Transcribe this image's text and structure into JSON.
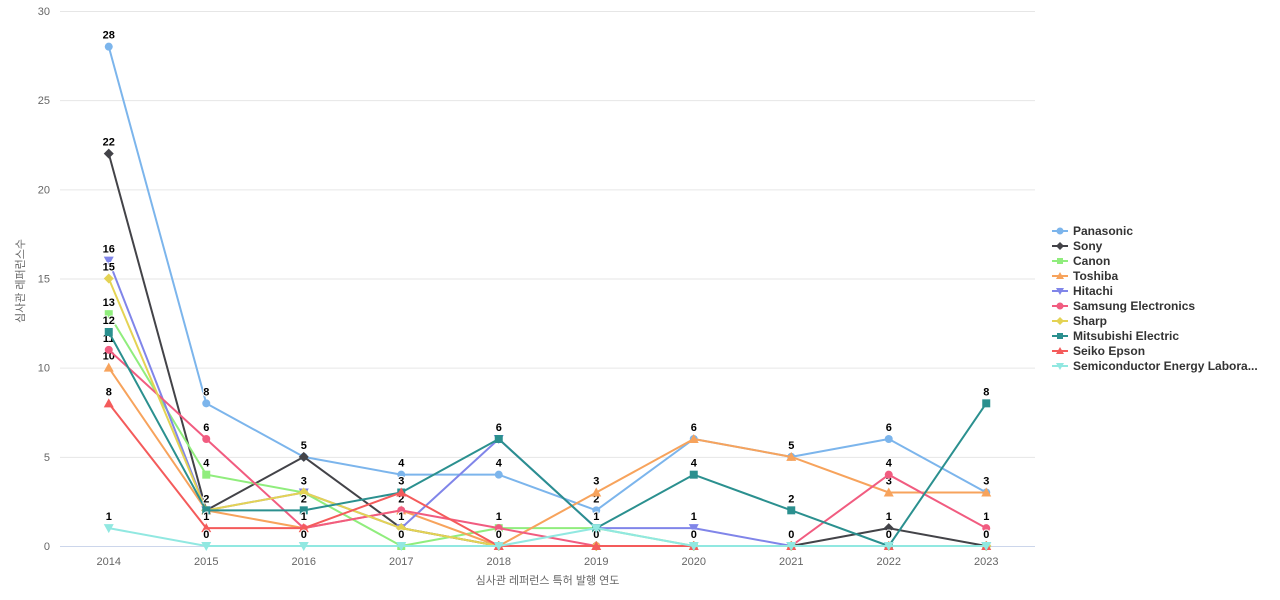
{
  "chart_data": {
    "type": "line",
    "title": "",
    "xlabel": "심사관 레퍼런스 특허 발행 연도",
    "ylabel": "심사관 레퍼런스수",
    "x": [
      "2014",
      "2015",
      "2016",
      "2017",
      "2018",
      "2019",
      "2020",
      "2021",
      "2022",
      "2023"
    ],
    "ylim": [
      0,
      30
    ],
    "yticks": [
      0,
      5,
      10,
      15,
      20,
      25,
      30
    ],
    "grid": true,
    "legend_position": "right",
    "data_labels": true,
    "series": [
      {
        "name": "Panasonic",
        "color": "#7cb5ec",
        "marker": "circle",
        "values": [
          28,
          8,
          5,
          4,
          4,
          2,
          6,
          5,
          6,
          3
        ]
      },
      {
        "name": "Sony",
        "color": "#434348",
        "marker": "diamond",
        "values": [
          22,
          2,
          5,
          1,
          0,
          0,
          0,
          0,
          1,
          0
        ]
      },
      {
        "name": "Canon",
        "color": "#90ed7d",
        "marker": "square",
        "values": [
          13,
          4,
          3,
          0,
          1,
          1,
          0,
          0,
          0,
          0
        ]
      },
      {
        "name": "Toshiba",
        "color": "#f7a35c",
        "marker": "triangle",
        "values": [
          10,
          2,
          1,
          2,
          0,
          3,
          6,
          5,
          3,
          3
        ]
      },
      {
        "name": "Hitachi",
        "color": "#8085e9",
        "marker": "triangle-down",
        "values": [
          16,
          2,
          3,
          1,
          6,
          1,
          1,
          0,
          0,
          0
        ]
      },
      {
        "name": "Samsung Electronics",
        "color": "#f15c80",
        "marker": "circle",
        "values": [
          11,
          6,
          1,
          2,
          1,
          0,
          0,
          0,
          4,
          1
        ]
      },
      {
        "name": "Sharp",
        "color": "#e4d354",
        "marker": "diamond",
        "values": [
          15,
          2,
          3,
          1,
          0,
          0,
          0,
          0,
          0,
          0
        ]
      },
      {
        "name": "Mitsubishi Electric",
        "color": "#2b908f",
        "marker": "square",
        "values": [
          12,
          2,
          2,
          3,
          6,
          1,
          4,
          2,
          0,
          8
        ]
      },
      {
        "name": "Seiko Epson",
        "color": "#f45b5b",
        "marker": "triangle",
        "values": [
          8,
          1,
          1,
          3,
          0,
          0,
          0,
          0,
          0,
          0
        ]
      },
      {
        "name": "Semiconductor Energy Labora...",
        "color": "#91e8e1",
        "marker": "triangle-down",
        "values": [
          1,
          0,
          0,
          0,
          0,
          1,
          0,
          0,
          0,
          0
        ]
      }
    ],
    "colors": {
      "grid_line": "#e6e6e6",
      "axis_line": "#ccd6eb",
      "tick_label": "#666666",
      "axis_title": "#666666",
      "data_label": "#000000",
      "legend_text": "#333333"
    }
  }
}
